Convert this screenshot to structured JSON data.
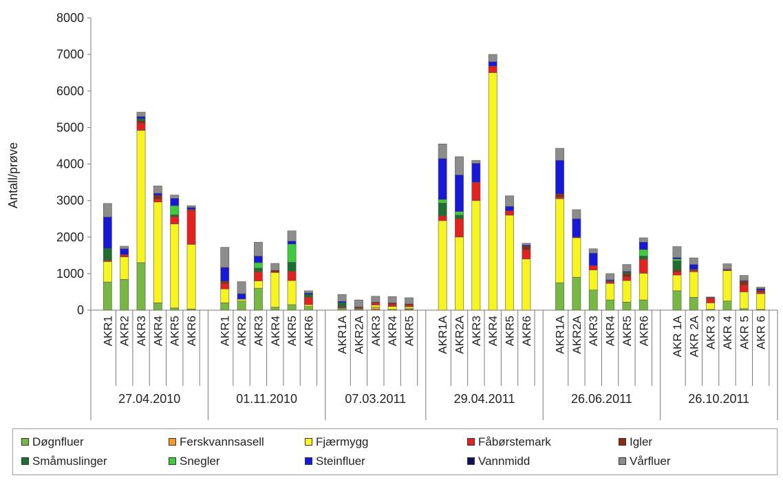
{
  "chart_data": {
    "type": "bar",
    "stacked": true,
    "ylabel": "Antall/prøve",
    "ylim": [
      0,
      8000
    ],
    "yticks": [
      0,
      1000,
      2000,
      3000,
      4000,
      5000,
      6000,
      7000,
      8000
    ],
    "grid": false,
    "legend_position": "bottom",
    "series": [
      {
        "name": "Døgnfluer",
        "color": "#77b843"
      },
      {
        "name": "Ferskvannsasell",
        "color": "#f39a28"
      },
      {
        "name": "Fjærmygg",
        "color": "#f7f51d"
      },
      {
        "name": "Fåbørstemark",
        "color": "#e3211f"
      },
      {
        "name": "Igler",
        "color": "#8b2d14"
      },
      {
        "name": "Småmuslinger",
        "color": "#1e6e2e"
      },
      {
        "name": "Snegler",
        "color": "#3ecb3c"
      },
      {
        "name": "Steinfluer",
        "color": "#1818d8"
      },
      {
        "name": "Vannmidd",
        "color": "#0f1058"
      },
      {
        "name": "Vårfluer",
        "color": "#8c8c8c"
      }
    ],
    "groups": [
      {
        "date": "27.04.2010",
        "bars": [
          {
            "label": "AKR1",
            "values": [
              770,
              0,
              560,
              30,
              0,
              330,
              0,
              860,
              0,
              370
            ]
          },
          {
            "label": "AKR2",
            "values": [
              840,
              0,
              620,
              60,
              0,
              0,
              0,
              160,
              0,
              70
            ]
          },
          {
            "label": "AKR3",
            "values": [
              1300,
              0,
              3620,
              200,
              60,
              60,
              0,
              60,
              0,
              120
            ]
          },
          {
            "label": "AKR4",
            "values": [
              200,
              0,
              2760,
              80,
              100,
              0,
              0,
              60,
              0,
              200
            ]
          },
          {
            "label": "AKR5",
            "values": [
              60,
              0,
              2300,
              200,
              0,
              50,
              250,
              200,
              0,
              90
            ]
          },
          {
            "label": "AKR6",
            "values": [
              30,
              0,
              1770,
              930,
              30,
              0,
              0,
              50,
              0,
              50
            ]
          }
        ]
      },
      {
        "date": "01.11.2010",
        "bars": [
          {
            "label": "AKR1",
            "values": [
              200,
              0,
              380,
              150,
              60,
              0,
              0,
              380,
              0,
              550
            ]
          },
          {
            "label": "AKR2",
            "values": [
              250,
              0,
              50,
              0,
              0,
              0,
              0,
              150,
              0,
              330
            ]
          },
          {
            "label": "AKR3",
            "values": [
              600,
              0,
              200,
              250,
              0,
              100,
              150,
              180,
              0,
              380
            ]
          },
          {
            "label": "AKR4",
            "values": [
              80,
              0,
              950,
              0,
              60,
              0,
              0,
              0,
              0,
              190
            ]
          },
          {
            "label": "AKR5",
            "values": [
              150,
              0,
              660,
              250,
              0,
              250,
              500,
              80,
              0,
              280
            ]
          },
          {
            "label": "AKR6",
            "values": [
              100,
              0,
              50,
              200,
              0,
              80,
              0,
              40,
              0,
              60
            ]
          }
        ]
      },
      {
        "date": "07.03.2011",
        "bars": [
          {
            "label": "AKR1A",
            "values": [
              40,
              0,
              20,
              20,
              20,
              100,
              0,
              40,
              0,
              190
            ]
          },
          {
            "label": "AKR2A",
            "values": [
              20,
              0,
              20,
              20,
              30,
              0,
              0,
              0,
              0,
              190
            ]
          },
          {
            "label": "AKR3",
            "values": [
              20,
              60,
              60,
              60,
              20,
              0,
              0,
              0,
              0,
              160
            ]
          },
          {
            "label": "AKR4",
            "values": [
              20,
              0,
              80,
              60,
              40,
              0,
              0,
              0,
              0,
              170
            ]
          },
          {
            "label": "AKR5",
            "values": [
              20,
              20,
              50,
              40,
              40,
              0,
              0,
              0,
              0,
              170
            ]
          }
        ]
      },
      {
        "date": "29.04.2011",
        "bars": [
          {
            "label": "AKR1A",
            "values": [
              0,
              0,
              2450,
              130,
              0,
              350,
              100,
              1120,
              0,
              400
            ]
          },
          {
            "label": "AKR2A",
            "values": [
              0,
              0,
              2000,
              500,
              0,
              100,
              100,
              1000,
              0,
              500
            ]
          },
          {
            "label": "AKR3",
            "values": [
              0,
              0,
              3000,
              500,
              0,
              0,
              0,
              520,
              0,
              80
            ]
          },
          {
            "label": "AKR4",
            "values": [
              0,
              0,
              6500,
              180,
              0,
              0,
              0,
              120,
              0,
              200
            ]
          },
          {
            "label": "AKR5",
            "values": [
              0,
              0,
              2600,
              120,
              0,
              0,
              0,
              120,
              0,
              290
            ]
          },
          {
            "label": "AKR6",
            "values": [
              0,
              0,
              1400,
              250,
              100,
              0,
              0,
              30,
              0,
              50
            ]
          }
        ]
      },
      {
        "date": "26.06.2011",
        "bars": [
          {
            "label": "AKR1A",
            "values": [
              750,
              0,
              2300,
              50,
              80,
              0,
              0,
              920,
              0,
              330
            ]
          },
          {
            "label": "AKR2A",
            "values": [
              900,
              0,
              1080,
              20,
              0,
              0,
              0,
              500,
              0,
              250
            ]
          },
          {
            "label": "AKR3",
            "values": [
              550,
              0,
              550,
              120,
              0,
              0,
              0,
              340,
              0,
              120
            ]
          },
          {
            "label": "AKR4",
            "values": [
              280,
              0,
              450,
              40,
              30,
              0,
              0,
              30,
              0,
              170
            ]
          },
          {
            "label": "AKR5",
            "values": [
              220,
              0,
              590,
              100,
              80,
              50,
              0,
              20,
              0,
              190
            ]
          },
          {
            "label": "AKR6",
            "values": [
              280,
              0,
              730,
              380,
              0,
              90,
              180,
              200,
              0,
              120
            ]
          }
        ]
      },
      {
        "date": "26.10.2011",
        "bars": [
          {
            "label": "AKR 1A",
            "values": [
              530,
              0,
              430,
              80,
              60,
              250,
              50,
              40,
              0,
              300
            ]
          },
          {
            "label": "AKR 2A",
            "values": [
              350,
              0,
              700,
              50,
              0,
              20,
              0,
              130,
              0,
              180
            ]
          },
          {
            "label": "AKR 3",
            "values": [
              20,
              0,
              180,
              130,
              20,
              0,
              0,
              0,
              0,
              10
            ]
          },
          {
            "label": "AKR 4",
            "values": [
              250,
              0,
              830,
              20,
              20,
              0,
              0,
              0,
              0,
              150
            ]
          },
          {
            "label": "AKR 5",
            "values": [
              40,
              0,
              460,
              190,
              100,
              0,
              0,
              20,
              0,
              140
            ]
          },
          {
            "label": "AKR 6",
            "values": [
              20,
              0,
              430,
              50,
              50,
              0,
              0,
              40,
              0,
              40
            ]
          }
        ]
      }
    ]
  }
}
